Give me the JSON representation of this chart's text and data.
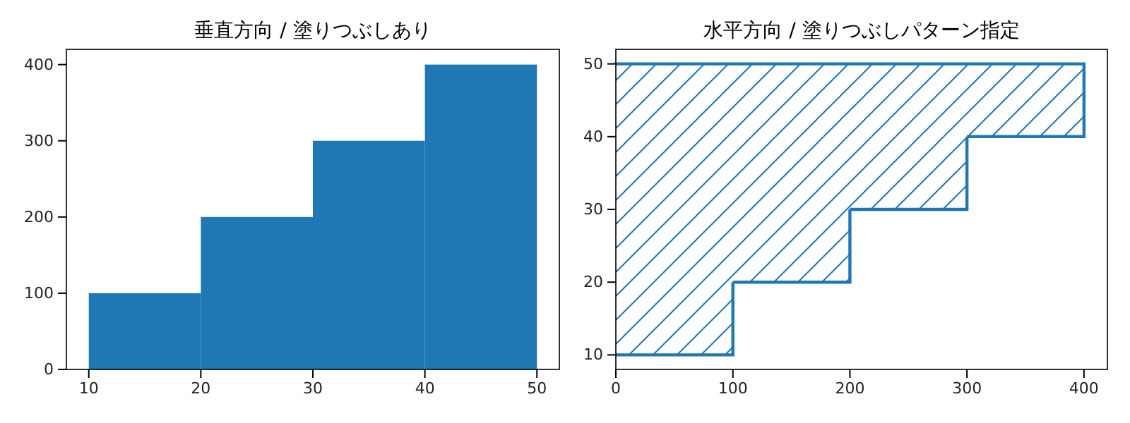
{
  "chart_data": [
    {
      "type": "histogram",
      "title": "垂直方向 / 塗りつぶしあり",
      "bins": [
        10,
        20,
        30,
        40,
        50
      ],
      "values": [
        100,
        200,
        300,
        400
      ],
      "color": "#1f77b4",
      "xlim": [
        8,
        52
      ],
      "xticks": [
        10,
        20,
        30,
        40,
        50
      ],
      "ylim": [
        0,
        420
      ],
      "yticks": [
        0,
        100,
        200,
        300,
        400
      ]
    },
    {
      "type": "histogram",
      "title": "水平方向 / 塗りつぶしパターン指定",
      "orientation": "horizontal",
      "bins": [
        10,
        20,
        30,
        40,
        50
      ],
      "values": [
        100,
        200,
        300,
        400
      ],
      "color": "#1f77b4",
      "xlim": [
        0,
        420
      ],
      "xticks": [
        0,
        100,
        200,
        300,
        400
      ],
      "ylim": [
        8,
        52
      ],
      "yticks": [
        10,
        20,
        30,
        40,
        50
      ]
    }
  ]
}
